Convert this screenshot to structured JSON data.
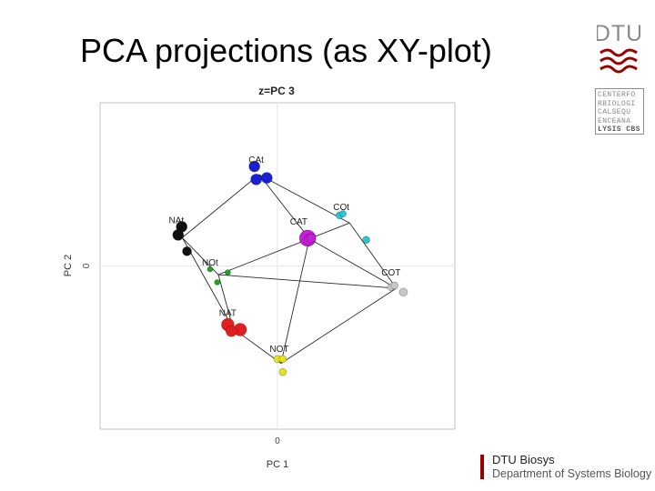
{
  "slide": {
    "title": "PCA projections (as XY-plot)"
  },
  "logos": {
    "dtu_text": "DTU",
    "dtu_color": "#990000",
    "cbs_rows": [
      "CENTERFO",
      "RBIOLOGI",
      "CALSEQU",
      "ENCEANA",
      "LYSIS CBS"
    ],
    "footer_brand": "DTU Biosys",
    "footer_dept": "Department of Systems Biology"
  },
  "chart_data": {
    "type": "scatter",
    "title": "z=PC 3",
    "xlabel": "PC 1",
    "ylabel": "PC 2",
    "xlim": [
      -1,
      1
    ],
    "ylim": [
      -1,
      1
    ],
    "x_ticks": [
      {
        "value": 0,
        "label": "0"
      }
    ],
    "y_ticks": [
      {
        "value": 0,
        "label": "0"
      }
    ],
    "grid": true,
    "groups": [
      {
        "name": "CAt",
        "color": "#1b1fcf",
        "label_at": [
          -0.12,
          0.61
        ],
        "points": [
          {
            "x": -0.13,
            "y": 0.61,
            "s": 6
          },
          {
            "x": -0.12,
            "y": 0.53,
            "s": 6
          },
          {
            "x": -0.06,
            "y": 0.54,
            "s": 6
          }
        ]
      },
      {
        "name": "NAt",
        "color": "#111111",
        "label_at": [
          -0.57,
          0.24
        ],
        "points": [
          {
            "x": -0.54,
            "y": 0.24,
            "s": 6
          },
          {
            "x": -0.56,
            "y": 0.19,
            "s": 6
          },
          {
            "x": -0.51,
            "y": 0.09,
            "s": 5
          }
        ]
      },
      {
        "name": "CAT",
        "color": "#c51fd6",
        "label_at": [
          0.12,
          0.23
        ],
        "points": [
          {
            "x": 0.17,
            "y": 0.17,
            "s": 9
          },
          {
            "x": 0.18,
            "y": 0.16,
            "s": 6
          },
          {
            "x": 0.19,
            "y": 0.17,
            "s": 5
          }
        ]
      },
      {
        "name": "COt",
        "color": "#2ec4d4",
        "label_at": [
          0.36,
          0.32
        ],
        "points": [
          {
            "x": 0.35,
            "y": 0.31,
            "s": 4
          },
          {
            "x": 0.37,
            "y": 0.32,
            "s": 3.5
          },
          {
            "x": 0.5,
            "y": 0.16,
            "s": 4
          }
        ]
      },
      {
        "name": "NOt",
        "color": "#23a023",
        "label_at": [
          -0.38,
          -0.02
        ],
        "points": [
          {
            "x": -0.38,
            "y": -0.02,
            "s": 3
          },
          {
            "x": -0.28,
            "y": -0.04,
            "s": 3
          },
          {
            "x": -0.34,
            "y": -0.1,
            "s": 3
          }
        ]
      },
      {
        "name": "COT",
        "color": "#c7c7c7",
        "label_at": [
          0.64,
          -0.08
        ],
        "points": [
          {
            "x": 0.64,
            "y": -0.13,
            "s": 4
          },
          {
            "x": 0.66,
            "y": -0.12,
            "s": 4
          },
          {
            "x": 0.71,
            "y": -0.16,
            "s": 4.5
          }
        ]
      },
      {
        "name": "NAT",
        "color": "#e02020",
        "label_at": [
          -0.28,
          -0.33
        ],
        "points": [
          {
            "x": -0.28,
            "y": -0.36,
            "s": 7
          },
          {
            "x": -0.21,
            "y": -0.39,
            "s": 7
          },
          {
            "x": -0.26,
            "y": -0.4,
            "s": 6
          }
        ]
      },
      {
        "name": "NOT",
        "color": "#e4e21c",
        "label_at": [
          0.01,
          -0.55
        ],
        "points": [
          {
            "x": 0.0,
            "y": -0.57,
            "s": 4
          },
          {
            "x": 0.03,
            "y": -0.57,
            "s": 4
          },
          {
            "x": 0.03,
            "y": -0.65,
            "s": 4
          }
        ]
      }
    ],
    "edges": [
      [
        "CAt",
        "NAt"
      ],
      [
        "CAt",
        "CAT"
      ],
      [
        "CAt",
        "COt"
      ],
      [
        "NAt",
        "NOt"
      ],
      [
        "NAt",
        "NAT"
      ],
      [
        "CAT",
        "COt"
      ],
      [
        "CAT",
        "NOt"
      ],
      [
        "CAT",
        "COT"
      ],
      [
        "CAT",
        "NOT"
      ],
      [
        "COt",
        "COT"
      ],
      [
        "NOt",
        "COT"
      ],
      [
        "NOt",
        "NAT"
      ],
      [
        "NAT",
        "NOT"
      ],
      [
        "COT",
        "NOT"
      ]
    ]
  }
}
